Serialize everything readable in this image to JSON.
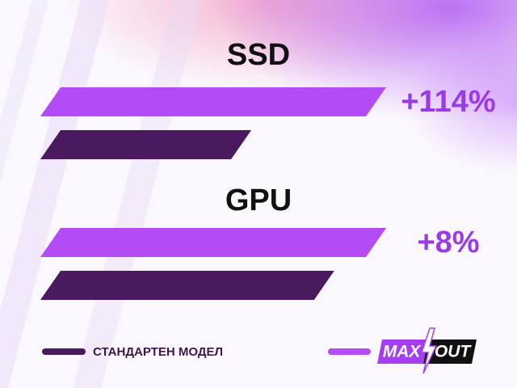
{
  "chart_data": {
    "type": "bar",
    "orientation": "horizontal",
    "categories": [
      "SSD",
      "GPU"
    ],
    "series": [
      {
        "name": "MAX   OUT",
        "color": "#b44cf5",
        "values": [
          100,
          100
        ],
        "value_labels": [
          "+114%",
          "+8%"
        ]
      },
      {
        "name": "СТАНДАРТЕН МОДЕЛ",
        "color": "#4a1a5e",
        "values": [
          61,
          85
        ]
      }
    ],
    "xlim": [
      0,
      100
    ]
  }
}
